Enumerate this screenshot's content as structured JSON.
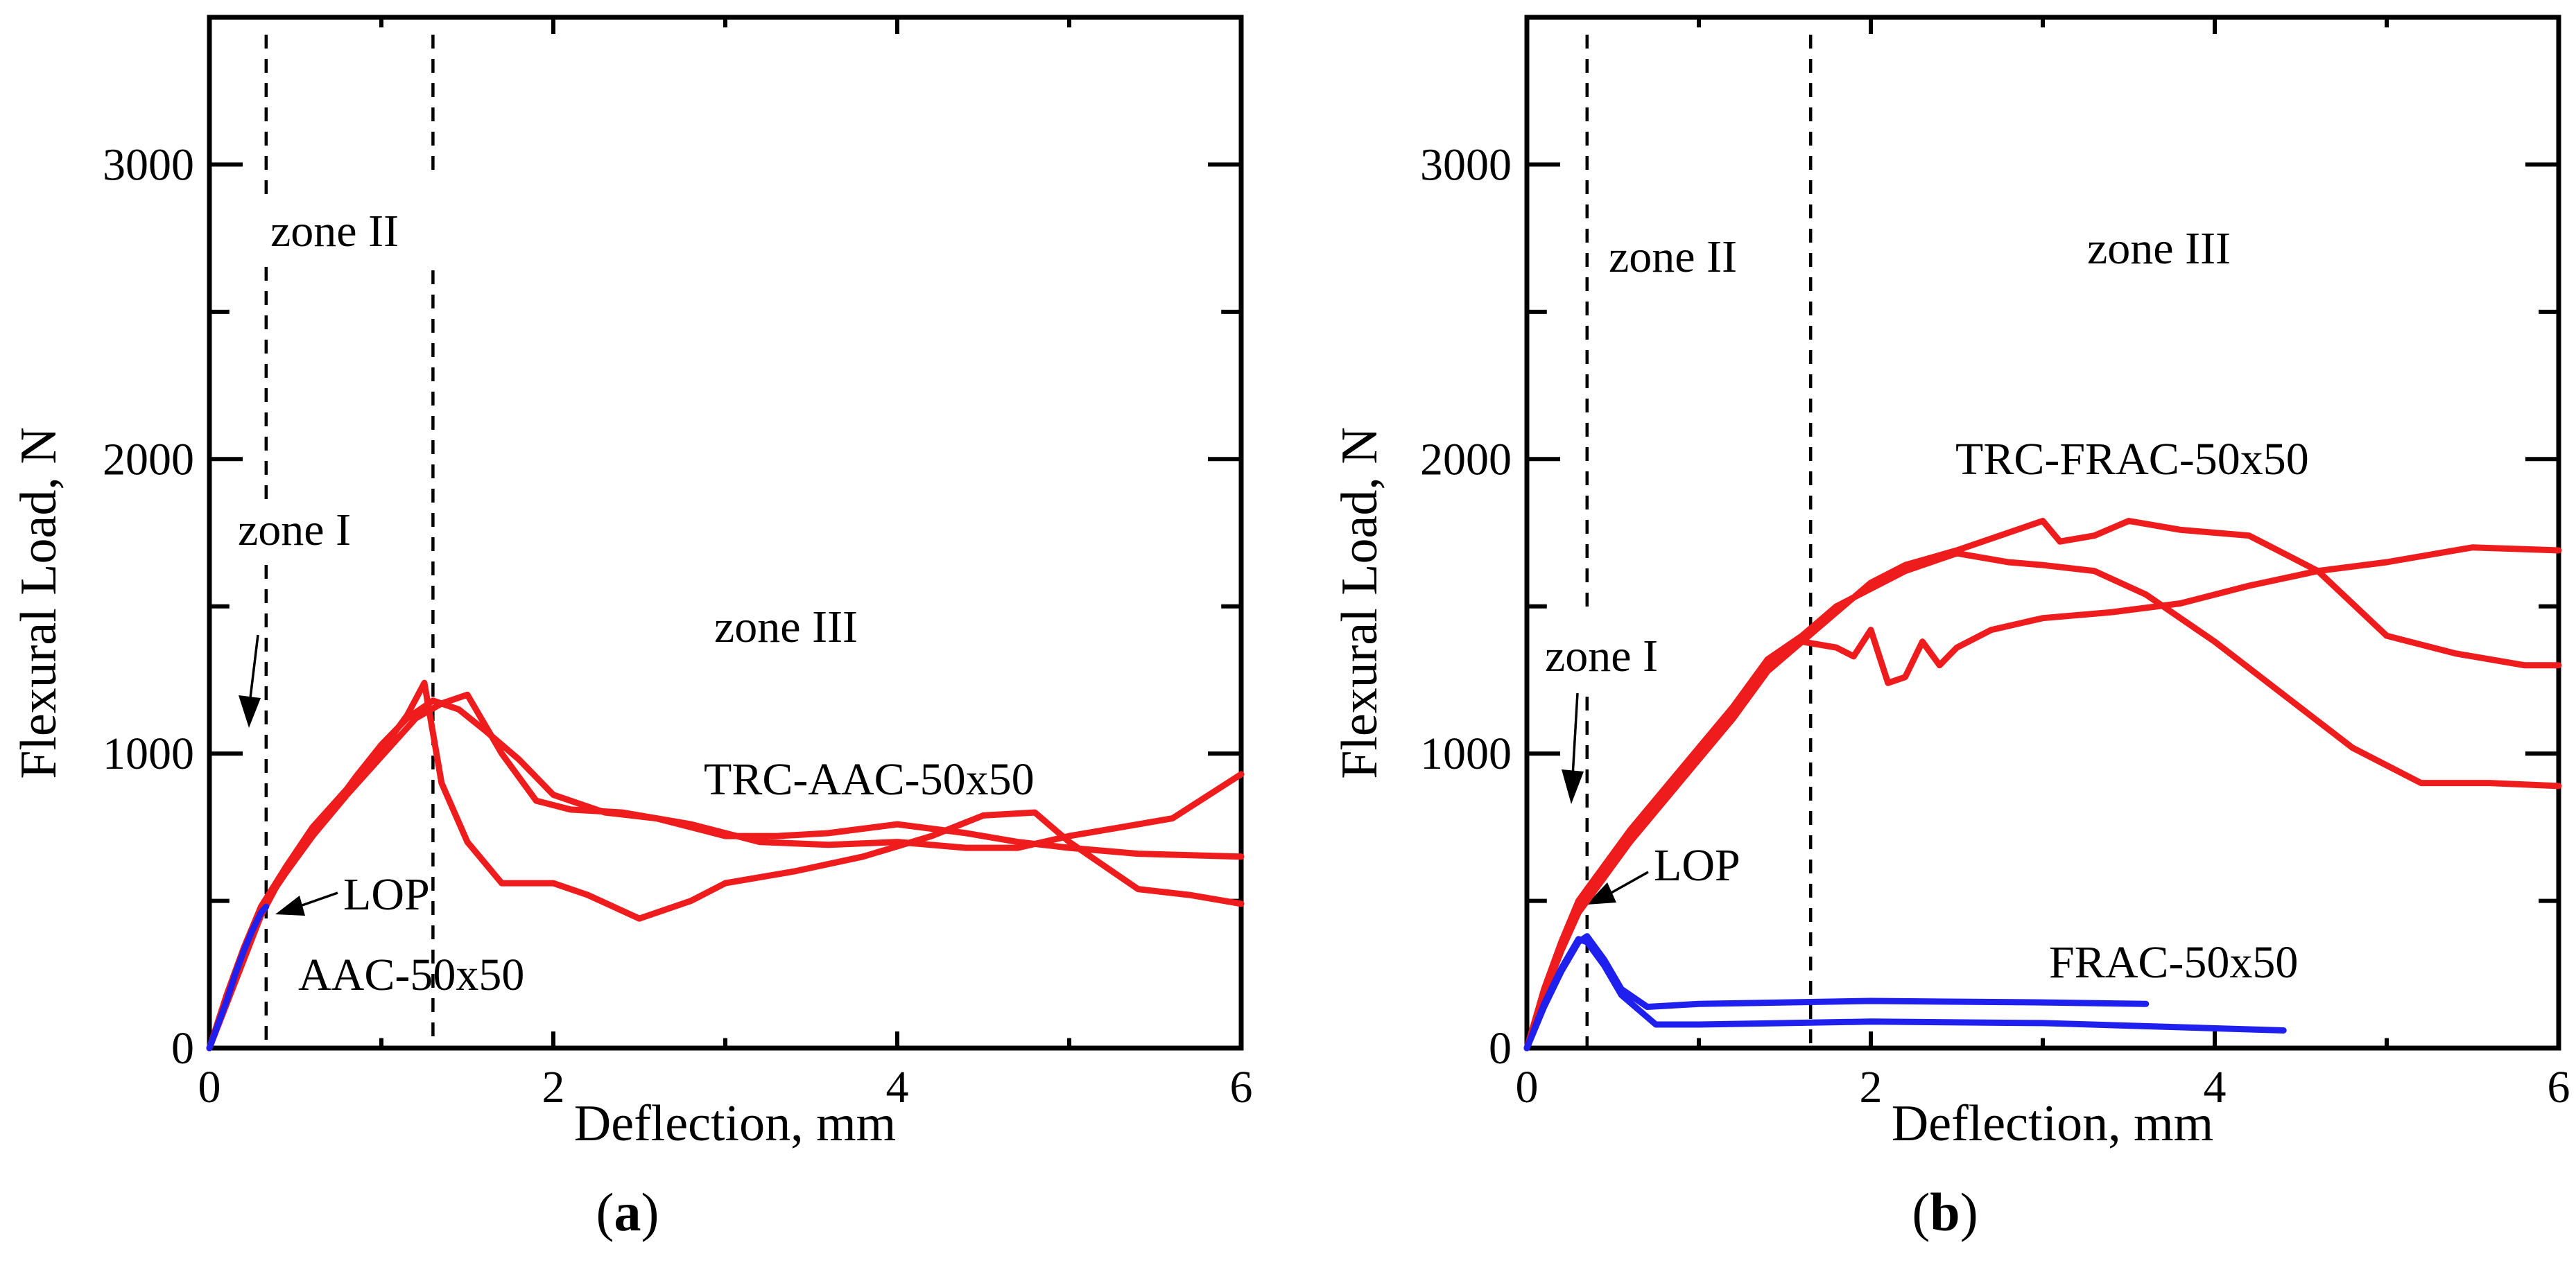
{
  "colors": {
    "red_series": "#ee1c1c",
    "blue_series": "#1f1fee",
    "axis": "#000000"
  },
  "chart_data": [
    {
      "type": "line",
      "panel_label": "a",
      "xlabel": "Deflection, mm",
      "ylabel": "Flexural Load, N",
      "xlim": [
        0,
        6
      ],
      "ylim": [
        0,
        3500
      ],
      "xticks": [
        "0",
        "2",
        "4",
        "6"
      ],
      "yticks": [
        "0",
        "1000",
        "2000",
        "3000"
      ],
      "zone_boundaries_x": [
        0.33,
        1.3
      ],
      "annotations": {
        "zone_1": "zone I",
        "zone_2": "zone II",
        "zone_3": "zone III",
        "lop": "LOP",
        "red_label": "TRC-AAC-50x50",
        "blue_label": "AAC-50x50"
      },
      "series": [
        {
          "name": "TRC-AAC-50x50 #1",
          "color": "red",
          "x": [
            0,
            0.1,
            0.2,
            0.3,
            0.4,
            0.55,
            0.7,
            0.85,
            1.0,
            1.15,
            1.3,
            1.45,
            1.6,
            1.8,
            2.0,
            2.3,
            2.6,
            3.0,
            3.3,
            3.6,
            4.0,
            4.4,
            4.7,
            5.0,
            5.4,
            6.0
          ],
          "y": [
            0,
            150,
            300,
            450,
            560,
            680,
            800,
            920,
            1030,
            1120,
            1180,
            1150,
            1080,
            980,
            860,
            800,
            780,
            720,
            720,
            730,
            760,
            730,
            700,
            680,
            660,
            650
          ]
        },
        {
          "name": "TRC-AAC-50x50 #2",
          "color": "red",
          "x": [
            0,
            0.1,
            0.2,
            0.3,
            0.45,
            0.6,
            0.8,
            1.0,
            1.15,
            1.25,
            1.35,
            1.5,
            1.7,
            1.85,
            2.0,
            2.2,
            2.5,
            2.8,
            3.0,
            3.4,
            3.8,
            4.2,
            4.5,
            4.8,
            5.0,
            5.4,
            5.7,
            6.0
          ],
          "y": [
            0,
            180,
            340,
            480,
            620,
            750,
            880,
            1010,
            1130,
            1240,
            900,
            700,
            560,
            560,
            560,
            520,
            440,
            500,
            560,
            600,
            650,
            720,
            790,
            800,
            700,
            540,
            520,
            490
          ]
        },
        {
          "name": "TRC-AAC-50x50 #3",
          "color": "red",
          "x": [
            0,
            0.1,
            0.2,
            0.3,
            0.45,
            0.6,
            0.8,
            1.0,
            1.2,
            1.35,
            1.5,
            1.7,
            1.9,
            2.1,
            2.4,
            2.8,
            3.2,
            3.6,
            4.0,
            4.4,
            4.7,
            5.0,
            5.3,
            5.6,
            6.0
          ],
          "y": [
            0,
            160,
            320,
            470,
            600,
            720,
            860,
            990,
            1120,
            1170,
            1200,
            1000,
            840,
            810,
            800,
            760,
            700,
            690,
            700,
            680,
            680,
            720,
            750,
            780,
            930
          ]
        },
        {
          "name": "AAC-50x50",
          "color": "blue",
          "x": [
            0,
            0.05,
            0.1,
            0.15,
            0.2,
            0.25,
            0.3,
            0.33
          ],
          "y": [
            0,
            80,
            160,
            250,
            330,
            400,
            460,
            480
          ]
        }
      ]
    },
    {
      "type": "line",
      "panel_label": "b",
      "xlabel": "Deflection, mm",
      "ylabel": "Flexural Load, N",
      "xlim": [
        0,
        6
      ],
      "ylim": [
        0,
        3500
      ],
      "xticks": [
        "0",
        "2",
        "4",
        "6"
      ],
      "yticks": [
        "0",
        "1000",
        "2000",
        "3000"
      ],
      "zone_boundaries_x": [
        0.35,
        1.65
      ],
      "annotations": {
        "zone_1": "zone I",
        "zone_2": "zone II",
        "zone_3": "zone III",
        "lop": "LOP",
        "red_label": "TRC-FRAC-50x50",
        "blue_label": "FRAC-50x50"
      },
      "series": [
        {
          "name": "TRC-FRAC-50x50 #1",
          "color": "red",
          "x": [
            0,
            0.1,
            0.2,
            0.3,
            0.4,
            0.5,
            0.6,
            0.8,
            1.0,
            1.2,
            1.4,
            1.6,
            1.8,
            2.0,
            2.2,
            2.5,
            2.8,
            3.0,
            3.1,
            3.3,
            3.5,
            3.8,
            4.2,
            4.6,
            5.0,
            5.4,
            5.8,
            6.0
          ],
          "y": [
            0,
            190,
            340,
            470,
            570,
            640,
            710,
            860,
            1000,
            1150,
            1300,
            1380,
            1480,
            1580,
            1640,
            1690,
            1750,
            1790,
            1720,
            1740,
            1790,
            1760,
            1740,
            1620,
            1400,
            1340,
            1300,
            1300
          ]
        },
        {
          "name": "TRC-FRAC-50x50 #2",
          "color": "red",
          "x": [
            0,
            0.1,
            0.2,
            0.3,
            0.45,
            0.6,
            0.8,
            1.0,
            1.2,
            1.4,
            1.6,
            1.8,
            2.0,
            2.2,
            2.5,
            2.8,
            3.0,
            3.3,
            3.6,
            4.0,
            4.4,
            4.8,
            5.2,
            5.6,
            6.0
          ],
          "y": [
            0,
            200,
            360,
            500,
            620,
            740,
            880,
            1020,
            1160,
            1320,
            1400,
            1500,
            1560,
            1620,
            1680,
            1650,
            1640,
            1620,
            1540,
            1380,
            1200,
            1020,
            900,
            900,
            890
          ]
        },
        {
          "name": "TRC-FRAC-50x50 #3",
          "color": "red",
          "x": [
            0,
            0.1,
            0.2,
            0.3,
            0.45,
            0.6,
            0.8,
            1.0,
            1.2,
            1.4,
            1.6,
            1.8,
            1.9,
            2.0,
            2.1,
            2.2,
            2.3,
            2.4,
            2.5,
            2.7,
            3.0,
            3.4,
            3.8,
            4.2,
            4.6,
            5.0,
            5.5,
            6.0
          ],
          "y": [
            0,
            180,
            330,
            460,
            580,
            700,
            840,
            980,
            1120,
            1280,
            1380,
            1360,
            1330,
            1420,
            1240,
            1260,
            1380,
            1300,
            1360,
            1420,
            1460,
            1480,
            1510,
            1570,
            1620,
            1650,
            1700,
            1690
          ]
        },
        {
          "name": "FRAC-50x50 #1",
          "color": "blue",
          "x": [
            0,
            0.1,
            0.2,
            0.3,
            0.35,
            0.45,
            0.55,
            0.7,
            1.0,
            2.0,
            3.0,
            3.6
          ],
          "y": [
            0,
            140,
            260,
            360,
            380,
            300,
            200,
            140,
            150,
            160,
            155,
            150
          ]
        },
        {
          "name": "FRAC-50x50 #2",
          "color": "blue",
          "x": [
            0,
            0.1,
            0.2,
            0.3,
            0.35,
            0.45,
            0.55,
            0.75,
            1.0,
            2.0,
            3.0,
            4.4
          ],
          "y": [
            0,
            150,
            270,
            370,
            360,
            280,
            180,
            80,
            80,
            90,
            85,
            60
          ]
        }
      ]
    }
  ]
}
